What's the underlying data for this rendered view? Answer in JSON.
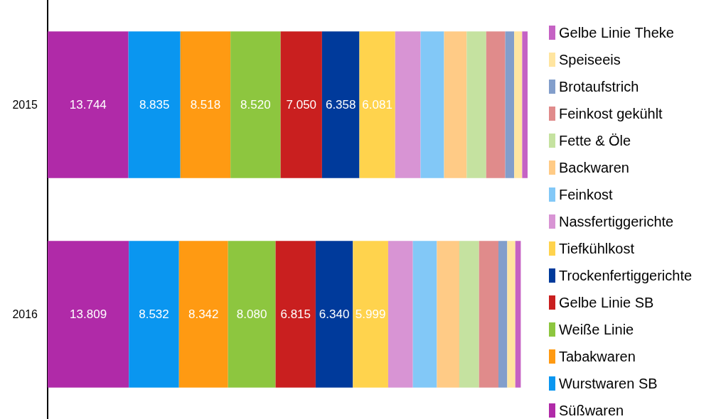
{
  "chart_data": {
    "type": "bar",
    "orientation": "horizontal",
    "stacked": true,
    "categories": [
      "2015",
      "2016"
    ],
    "legend": "right",
    "tick_labels": "y",
    "series": [
      {
        "name": "Süßwaren",
        "color": "#b02aa8",
        "values": [
          13744,
          13809
        ],
        "value_labels": [
          "13.744",
          "13.809"
        ]
      },
      {
        "name": "Wurstwaren SB",
        "color": "#0a96f0",
        "values": [
          8835,
          8532
        ],
        "value_labels": [
          "8.835",
          "8.532"
        ]
      },
      {
        "name": "Tabakwaren",
        "color": "#ff9a12",
        "values": [
          8518,
          8342
        ],
        "value_labels": [
          "8.518",
          "8.342"
        ]
      },
      {
        "name": "Weiße Linie",
        "color": "#8dc63f",
        "values": [
          8520,
          8080
        ],
        "value_labels": [
          "8.520",
          "8.080"
        ]
      },
      {
        "name": "Gelbe Linie SB",
        "color": "#c91f1f",
        "values": [
          7050,
          6815
        ],
        "value_labels": [
          "7.050",
          "6.815"
        ]
      },
      {
        "name": "Trockenfertiggerichte",
        "color": "#003a9b",
        "values": [
          6358,
          6340
        ],
        "value_labels": [
          "6.358",
          "6.340"
        ]
      },
      {
        "name": "Tiefkühlkost",
        "color": "#ffd34d",
        "values": [
          6081,
          5999
        ],
        "value_labels": [
          "6.081",
          "5.999"
        ]
      },
      {
        "name": "Nassfertiggerichte",
        "color": "#d894d4",
        "values": [
          4320,
          4200
        ]
      },
      {
        "name": "Feinkost",
        "color": "#82c8f7",
        "values": [
          4000,
          4080
        ]
      },
      {
        "name": "Backwaren",
        "color": "#ffcb86",
        "values": [
          3840,
          3820
        ]
      },
      {
        "name": "Fette & Öle",
        "color": "#c5e2a0",
        "values": [
          3320,
          3350
        ]
      },
      {
        "name": "Feinkost gekühlt",
        "color": "#e08b8b",
        "values": [
          3240,
          3300
        ]
      },
      {
        "name": "Brotaufstrich",
        "color": "#829ecb",
        "values": [
          1520,
          1500
        ]
      },
      {
        "name": "Speiseeis",
        "color": "#ffe5a0",
        "values": [
          1360,
          1370
        ]
      },
      {
        "name": "Gelbe Linie Theke",
        "color": "#c562c4",
        "values": [
          920,
          930
        ]
      }
    ]
  }
}
